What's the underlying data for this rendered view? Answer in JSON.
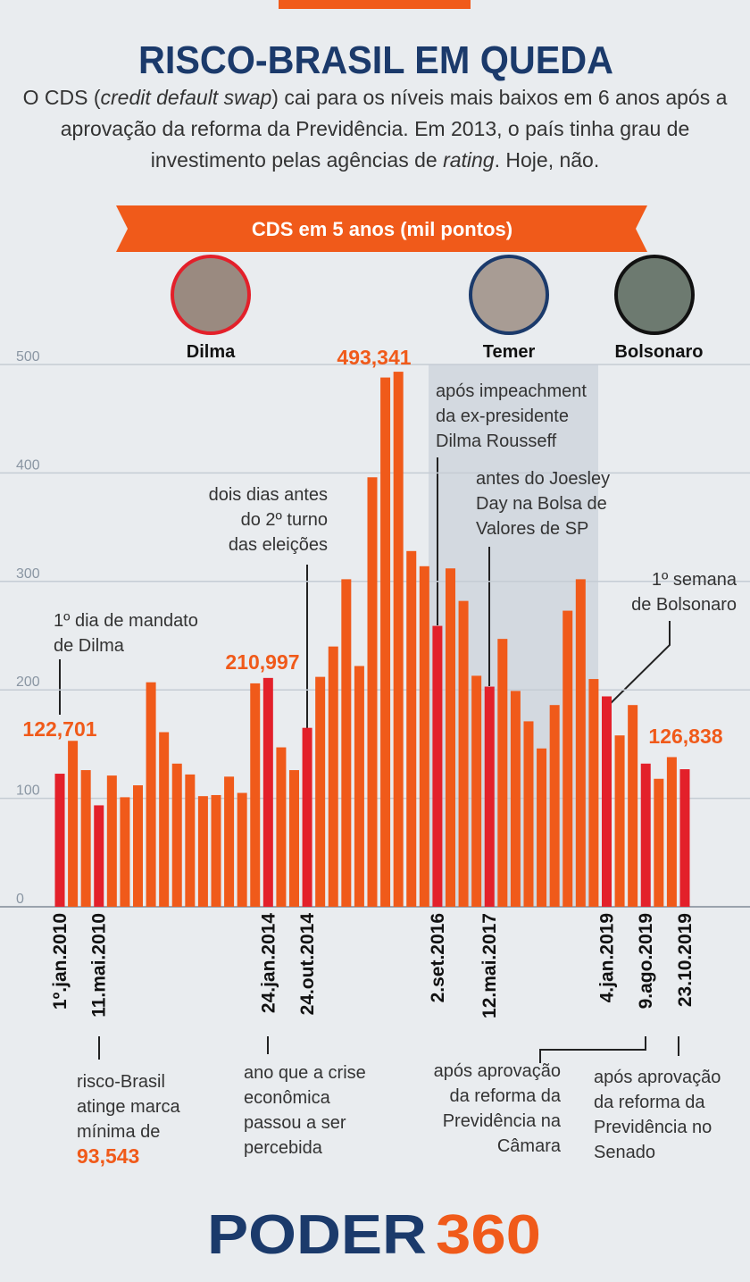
{
  "header": {
    "title": "RISCO-BRASIL EM QUEDA",
    "subtitle": [
      "O CDS (",
      "credit default swap",
      ") cai para os níveis mais baixos em 6 anos após a aprovação da reforma da Previdência. Em 2013, o país tinha grau de investimento pelas agências de ",
      "rating",
      ". Hoje, não."
    ]
  },
  "chart_data": {
    "type": "bar",
    "title": "CDS em 5 anos (mil pontos)",
    "categories": [
      "1º.jan.2010",
      null,
      null,
      "11.mai.2010",
      null,
      null,
      null,
      null,
      null,
      null,
      null,
      null,
      null,
      null,
      null,
      null,
      "24.jan.2014",
      null,
      null,
      "24.out.2014",
      null,
      null,
      null,
      null,
      null,
      null,
      null,
      null,
      null,
      "2.set.2016",
      null,
      null,
      null,
      "12.mai.2017",
      null,
      null,
      null,
      null,
      null,
      null,
      null,
      null,
      "4.jan.2019",
      null,
      null,
      "9.ago.2019",
      null,
      null,
      "23.10.2019"
    ],
    "values": [
      122.701,
      153,
      126,
      93.543,
      121,
      101,
      112,
      207,
      161,
      132,
      122,
      102,
      103,
      120,
      105,
      206,
      210.997,
      147,
      126,
      165,
      212,
      240,
      302,
      222,
      396,
      488,
      493.341,
      328,
      314,
      259,
      312,
      282,
      213,
      203,
      247,
      199,
      171,
      146,
      186,
      273,
      302,
      210,
      194,
      158,
      186,
      132,
      118,
      138,
      126.838
    ],
    "value_labels": [
      "122,701",
      null,
      null,
      "93,543",
      null,
      null,
      null,
      null,
      null,
      null,
      null,
      null,
      null,
      null,
      null,
      null,
      "210,997",
      null,
      null,
      null,
      null,
      null,
      null,
      null,
      null,
      null,
      "493,341",
      null,
      null,
      null,
      null,
      null,
      null,
      null,
      null,
      null,
      null,
      null,
      null,
      null,
      null,
      null,
      null,
      null,
      null,
      null,
      null,
      null,
      "126,838"
    ],
    "color": "#f05a1a",
    "highlight_color": "#e3202a",
    "value_label_color": "#f05a1a",
    "ylim": [
      0,
      500
    ],
    "yticks": [
      0,
      100,
      200,
      300,
      400,
      500
    ],
    "grid": true,
    "presidents": [
      {
        "name": "Dilma"
      },
      {
        "name": "Temer"
      },
      {
        "name": "Bolsonaro"
      }
    ],
    "annotations": [
      {
        "lines": [
          "1º dia de mandato",
          "de Dilma"
        ]
      },
      {
        "lines": [
          "dois dias antes",
          "do 2º turno",
          "das eleições"
        ]
      },
      {
        "lines": [
          "após impeachment",
          "da ex-presidente",
          "Dilma Rousseff"
        ]
      },
      {
        "lines": [
          "antes do Joesley",
          "Day na Bolsa de",
          "Valores de SP"
        ]
      },
      {
        "lines": [
          "1º semana",
          "de Bolsonaro"
        ]
      },
      {
        "lines": [
          "risco-Brasil",
          "atinge marca",
          "mínima de"
        ]
      },
      {
        "lines": [
          "ano que a crise",
          "econômica",
          "passou a ser",
          "percebida"
        ]
      },
      {
        "lines": [
          "após aprovação",
          "da reforma da",
          "Previdência na",
          "Câmara"
        ]
      },
      {
        "lines": [
          "após aprovação",
          "da reforma da",
          "Previdência no",
          "Senado"
        ]
      }
    ]
  },
  "footer": {
    "logo": [
      "PODER",
      "360"
    ]
  }
}
